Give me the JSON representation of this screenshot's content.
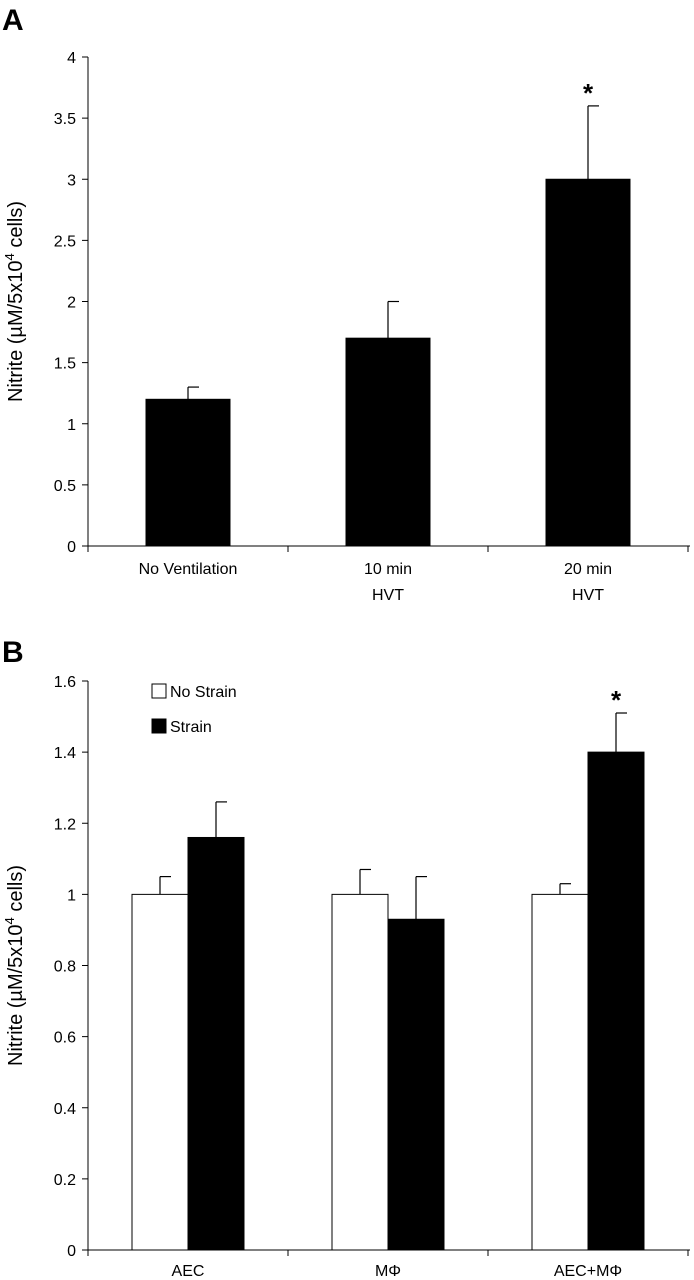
{
  "chart_data": [
    {
      "type": "bar",
      "panel_label": "A",
      "title": "",
      "xlabel": "",
      "ylabel_parts": [
        "Nitrite (µM/5x10",
        "4",
        " cells)"
      ],
      "ylim": [
        0,
        4
      ],
      "yticks": [
        0,
        0.5,
        1,
        1.5,
        2,
        2.5,
        3,
        3.5,
        4
      ],
      "ytick_labels": [
        "0",
        "0.5",
        "1",
        "1.5",
        "2",
        "2.5",
        "3",
        "3.5",
        "4"
      ],
      "categories": [
        [
          "No Ventilation"
        ],
        [
          "10 min",
          "HVT"
        ],
        [
          "20 min",
          "HVT"
        ]
      ],
      "series": [
        {
          "values": [
            1.2,
            1.7,
            3.0
          ],
          "errors": [
            0.1,
            0.3,
            0.6
          ],
          "fill": "#000000"
        }
      ],
      "annotations": [
        {
          "category_index": 2,
          "series_index": 0,
          "text": "*"
        }
      ],
      "grid": false,
      "legend": null
    },
    {
      "type": "bar",
      "panel_label": "B",
      "title": "",
      "xlabel": "",
      "ylabel_parts": [
        "Nitrite (µM/5x10",
        "4",
        " cells)"
      ],
      "ylim": [
        0,
        1.6
      ],
      "yticks": [
        0,
        0.2,
        0.4,
        0.6,
        0.8,
        1,
        1.2,
        1.4,
        1.6
      ],
      "ytick_labels": [
        "0",
        "0.2",
        "0.4",
        "0.6",
        "0.8",
        "1",
        "1.2",
        "1.4",
        "1.6"
      ],
      "categories": [
        [
          "AEC"
        ],
        [
          "MΦ"
        ],
        [
          "AEC+MΦ"
        ]
      ],
      "series": [
        {
          "name": "No Strain",
          "values": [
            1.0,
            1.0,
            1.0
          ],
          "errors": [
            0.05,
            0.07,
            0.03
          ],
          "fill": "#ffffff"
        },
        {
          "name": "Strain",
          "values": [
            1.16,
            0.93,
            1.4
          ],
          "errors": [
            0.1,
            0.12,
            0.11
          ],
          "fill": "#000000"
        }
      ],
      "annotations": [
        {
          "category_index": 2,
          "series_index": 1,
          "text": "*"
        }
      ],
      "grid": false,
      "legend": "top-left"
    }
  ]
}
